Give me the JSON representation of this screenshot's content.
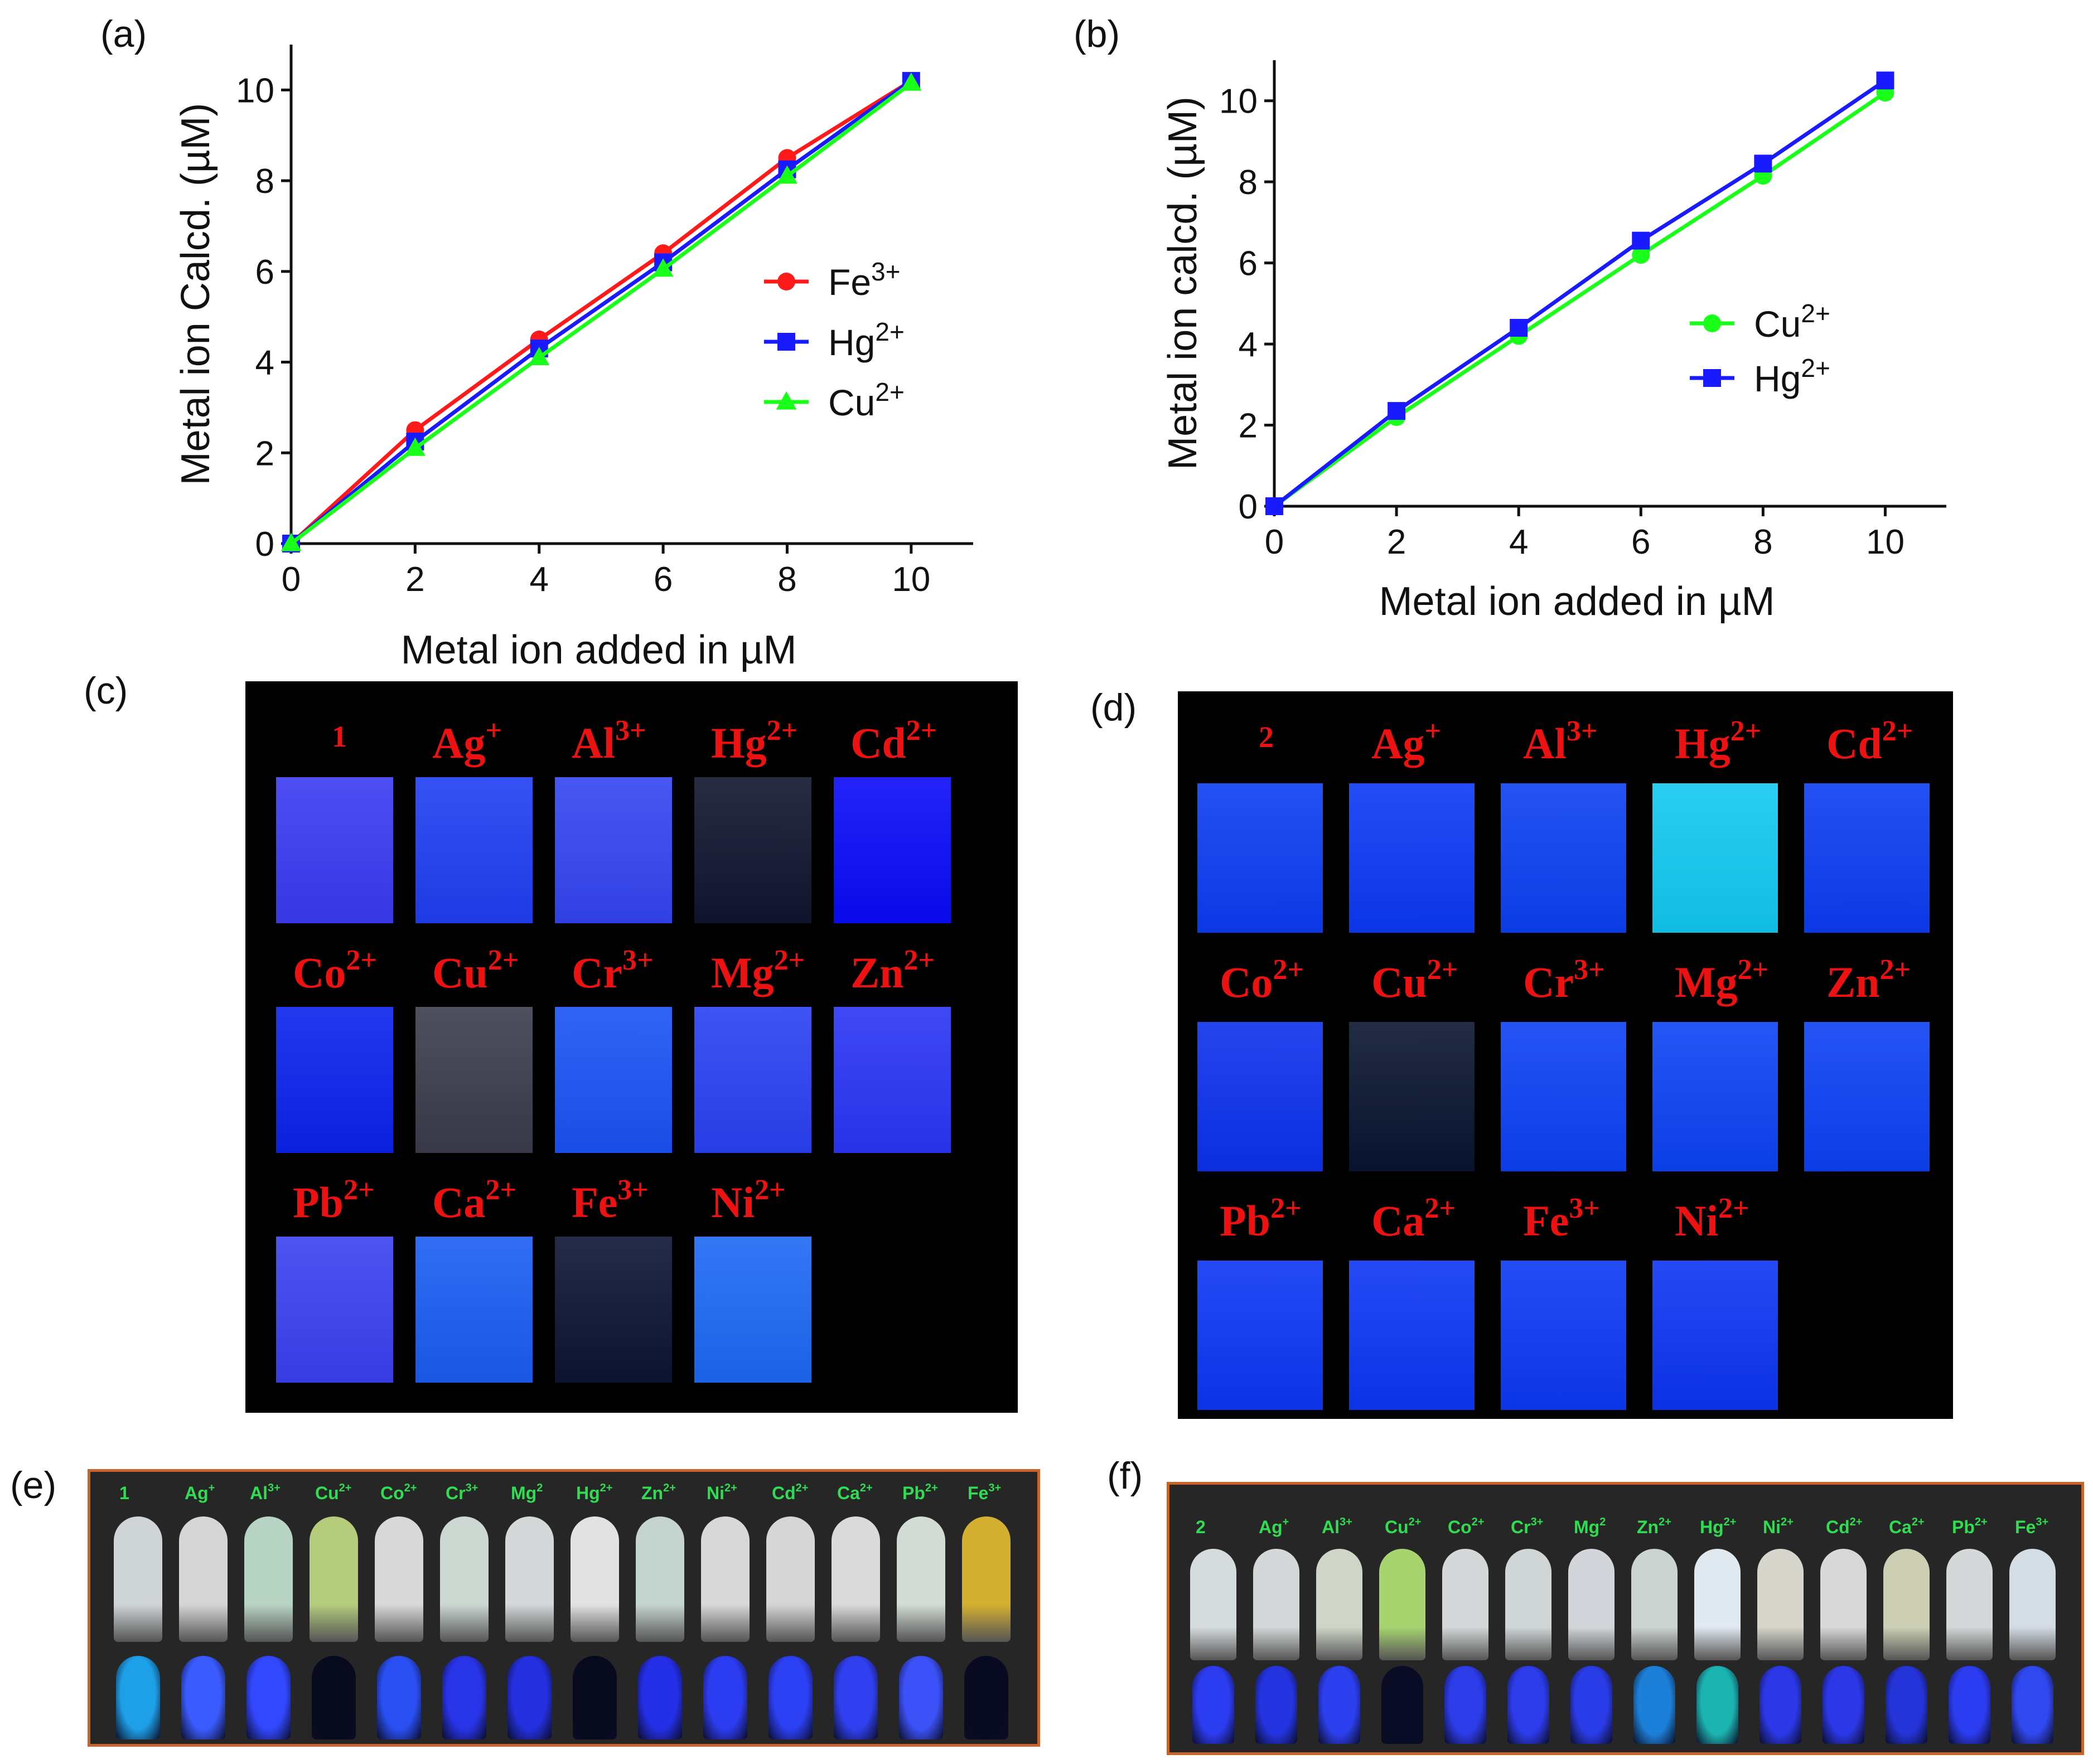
{
  "panel_labels": {
    "a": "(a)",
    "b": "(b)",
    "c": "(c)",
    "d": "(d)",
    "e": "(e)",
    "f": "(f)"
  },
  "chart_data": [
    {
      "type": "line",
      "panel": "(a)",
      "xlabel": "Metal ion added in µM",
      "ylabel": "Metal ion Calcd.  (µM)",
      "x": [
        0,
        2,
        4,
        6,
        8,
        10
      ],
      "xticks": [
        0,
        2,
        4,
        6,
        8,
        10
      ],
      "yticks": [
        0,
        2,
        4,
        6,
        8,
        10
      ],
      "xlim": [
        0,
        11
      ],
      "ylim": [
        0,
        11
      ],
      "legend_position": "center-right",
      "series": [
        {
          "name": "Fe",
          "charge": "3+",
          "color": "#ff1a1a",
          "marker": "circle",
          "values": [
            0,
            2.5,
            4.5,
            6.4,
            8.5,
            10.2
          ]
        },
        {
          "name": "Hg",
          "charge": "2+",
          "color": "#1a1aff",
          "marker": "square",
          "values": [
            0,
            2.25,
            4.3,
            6.2,
            8.25,
            10.2
          ]
        },
        {
          "name": "Cu",
          "charge": "2+",
          "color": "#1aff1a",
          "marker": "triangle",
          "values": [
            0,
            2.1,
            4.1,
            6.05,
            8.1,
            10.15
          ]
        }
      ]
    },
    {
      "type": "line",
      "panel": "(b)",
      "xlabel": "Metal ion added in µM",
      "ylabel": "Metal ion calcd. (µM)",
      "x": [
        0,
        2,
        4,
        6,
        8,
        10
      ],
      "xticks": [
        0,
        2,
        4,
        6,
        8,
        10
      ],
      "yticks": [
        0,
        2,
        4,
        6,
        8,
        10
      ],
      "xlim": [
        0,
        11
      ],
      "ylim": [
        0,
        11
      ],
      "legend_position": "center-right",
      "series": [
        {
          "name": "Cu",
          "charge": "2+",
          "color": "#1aff1a",
          "marker": "circle",
          "values": [
            0,
            2.2,
            4.2,
            6.2,
            8.15,
            10.2
          ]
        },
        {
          "name": "Hg",
          "charge": "2+",
          "color": "#1a1aff",
          "marker": "square",
          "values": [
            0,
            2.35,
            4.4,
            6.55,
            8.45,
            10.5
          ]
        }
      ]
    }
  ],
  "panel_c": {
    "rows": [
      [
        {
          "ion": "1",
          "charge": "",
          "color": "#3a3af2"
        },
        {
          "ion": "Ag",
          "charge": "+",
          "color": "#1f3ef2"
        },
        {
          "ion": "Al",
          "charge": "3+",
          "color": "#3444f0"
        },
        {
          "ion": "Hg",
          "charge": "2+",
          "color": "#10142e"
        },
        {
          "ion": "Cd",
          "charge": "2+",
          "color": "#0a0af8"
        }
      ],
      [
        {
          "ion": "Co",
          "charge": "2+",
          "color": "#0a22ec"
        },
        {
          "ion": "Cu",
          "charge": "2+",
          "color": "#3a3c4c"
        },
        {
          "ion": "Cr",
          "charge": "3+",
          "color": "#1a52f4"
        },
        {
          "ion": "Mg",
          "charge": "2+",
          "color": "#2a40f2"
        },
        {
          "ion": "Zn",
          "charge": "2+",
          "color": "#2a34f4"
        }
      ],
      [
        {
          "ion": "Pb",
          "charge": "2+",
          "color": "#3a40f0"
        },
        {
          "ion": "Ca",
          "charge": "2+",
          "color": "#1a5cf2"
        },
        {
          "ion": "Fe",
          "charge": "3+",
          "color": "#0c1434"
        },
        {
          "ion": "Ni",
          "charge": "2+",
          "color": "#1c68f4"
        }
      ]
    ]
  },
  "panel_d": {
    "rows": [
      [
        {
          "ion": "2",
          "charge": "",
          "color": "#0c3cf2"
        },
        {
          "ion": "Ag",
          "charge": "+",
          "color": "#0c38f4"
        },
        {
          "ion": "Al",
          "charge": "3+",
          "color": "#0c40f2"
        },
        {
          "ion": "Hg",
          "charge": "2+",
          "color": "#12c8f0"
        },
        {
          "ion": "Cd",
          "charge": "2+",
          "color": "#0c3cf2"
        }
      ],
      [
        {
          "ion": "Co",
          "charge": "2+",
          "color": "#0c30ec"
        },
        {
          "ion": "Cu",
          "charge": "2+",
          "color": "#0a1430"
        },
        {
          "ion": "Cr",
          "charge": "3+",
          "color": "#0c40f4"
        },
        {
          "ion": "Mg",
          "charge": "2+",
          "color": "#0c42f4"
        },
        {
          "ion": "Zn",
          "charge": "2+",
          "color": "#0c40f4"
        }
      ],
      [
        {
          "ion": "Pb",
          "charge": "2+",
          "color": "#0c36f4"
        },
        {
          "ion": "Ca",
          "charge": "2+",
          "color": "#0c36f4"
        },
        {
          "ion": "Fe",
          "charge": "3+",
          "color": "#0c38f4"
        },
        {
          "ion": "Ni",
          "charge": "2+",
          "color": "#0c34f2"
        }
      ]
    ]
  },
  "panel_e": {
    "vials": [
      {
        "ion": "1",
        "charge": "",
        "day": "#cfd4d6",
        "uv": "#1ea0e8"
      },
      {
        "ion": "Ag",
        "charge": "+",
        "day": "#d6d6d6",
        "uv": "#3a5cff"
      },
      {
        "ion": "Al",
        "charge": "3+",
        "day": "#b8d4c4",
        "uv": "#3248ff"
      },
      {
        "ion": "Cu",
        "charge": "2+",
        "day": "#b4cc7c",
        "uv": "#07091c"
      },
      {
        "ion": "Co",
        "charge": "2+",
        "day": "#d8d8d8",
        "uv": "#2a50f4"
      },
      {
        "ion": "Cr",
        "charge": "3+",
        "day": "#cdd8d2",
        "uv": "#2834e8"
      },
      {
        "ion": "Mg",
        "charge": "2",
        "day": "#d4d8d8",
        "uv": "#2430e0"
      },
      {
        "ion": "Hg",
        "charge": "2+",
        "day": "#e2e2e2",
        "uv": "#07091c"
      },
      {
        "ion": "Zn",
        "charge": "2+",
        "day": "#c6d4d0",
        "uv": "#2430e8"
      },
      {
        "ion": "Ni",
        "charge": "2+",
        "day": "#d8d8d8",
        "uv": "#2c3cf0"
      },
      {
        "ion": "Cd",
        "charge": "2+",
        "day": "#d6d6d6",
        "uv": "#2c40f4"
      },
      {
        "ion": "Ca",
        "charge": "2+",
        "day": "#dadada",
        "uv": "#3040f0"
      },
      {
        "ion": "Pb",
        "charge": "2+",
        "day": "#d2dcd4",
        "uv": "#3c52f8"
      },
      {
        "ion": "Fe",
        "charge": "3+",
        "day": "#d4b030",
        "uv": "#080a22"
      }
    ]
  },
  "panel_f": {
    "vials": [
      {
        "ion": "2",
        "charge": "",
        "day": "#d6dcde",
        "uv": "#2c3cf0"
      },
      {
        "ion": "Ag",
        "charge": "+",
        "day": "#d4d8d8",
        "uv": "#2434e0"
      },
      {
        "ion": "Al",
        "charge": "3+",
        "day": "#cfd6c8",
        "uv": "#2c40f0"
      },
      {
        "ion": "Cu",
        "charge": "2+",
        "day": "#a8d470",
        "uv": "#0a0c26"
      },
      {
        "ion": "Co",
        "charge": "2+",
        "day": "#d4d8d8",
        "uv": "#2c3ce8"
      },
      {
        "ion": "Cr",
        "charge": "3+",
        "day": "#d0d6d6",
        "uv": "#2c3cea"
      },
      {
        "ion": "Mg",
        "charge": "2",
        "day": "#d2d6da",
        "uv": "#2a3ce8"
      },
      {
        "ion": "Zn",
        "charge": "2+",
        "day": "#ccd4d2",
        "uv": "#1c80d8"
      },
      {
        "ion": "Hg",
        "charge": "2+",
        "day": "#e0e8f0",
        "uv": "#1cb4b0"
      },
      {
        "ion": "Ni",
        "charge": "2+",
        "day": "#d6d6cc",
        "uv": "#2c38e8"
      },
      {
        "ion": "Cd",
        "charge": "2+",
        "day": "#d8d8d8",
        "uv": "#2c38e8"
      },
      {
        "ion": "Ca",
        "charge": "2+",
        "day": "#cccfb4",
        "uv": "#2434d8"
      },
      {
        "ion": "Pb",
        "charge": "2+",
        "day": "#d4d8d8",
        "uv": "#2c3cf0"
      },
      {
        "ion": "Fe",
        "charge": "3+",
        "day": "#d4dce4",
        "uv": "#3048f0"
      }
    ]
  }
}
